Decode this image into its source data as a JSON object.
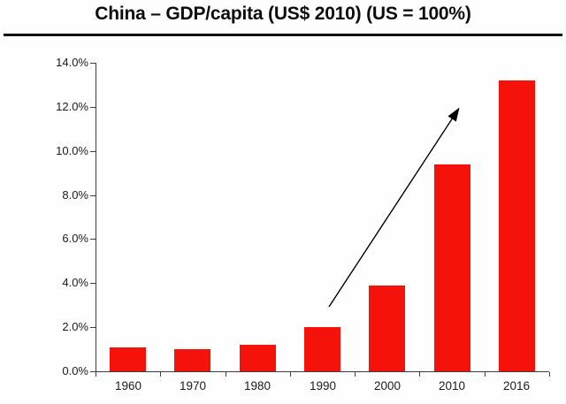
{
  "title": "China – GDP/capita (US$ 2010) (US = 100%)",
  "chart_data": {
    "type": "bar",
    "title": "China – GDP/capita (US$ 2010) (US = 100%)",
    "categories": [
      "1960",
      "1970",
      "1980",
      "1990",
      "2000",
      "2010",
      "2016"
    ],
    "values": [
      1.1,
      1.0,
      1.2,
      2.0,
      3.9,
      9.4,
      13.2
    ],
    "unit": "%",
    "xlabel": "",
    "ylabel": "",
    "ylim": [
      0,
      14
    ],
    "y_tick_step": 2,
    "y_tick_labels": [
      "0.0%",
      "2.0%",
      "4.0%",
      "6.0%",
      "8.0%",
      "10.0%",
      "12.0%",
      "14.0%"
    ],
    "grid": false,
    "legend": false,
    "bar_color": "#f5120b",
    "axis_color": "#3d3d3d",
    "text_color": "#1c1c1c",
    "annotations": [
      {
        "type": "arrow",
        "description": "upward trend arrow rising from just above the 1990 bar toward the top of the 2010 bar",
        "color": "#000000",
        "from": {
          "near_category": "1990",
          "value_level": 2.9
        },
        "to": {
          "near_category": "2010",
          "value_level": 12.1
        }
      }
    ]
  }
}
